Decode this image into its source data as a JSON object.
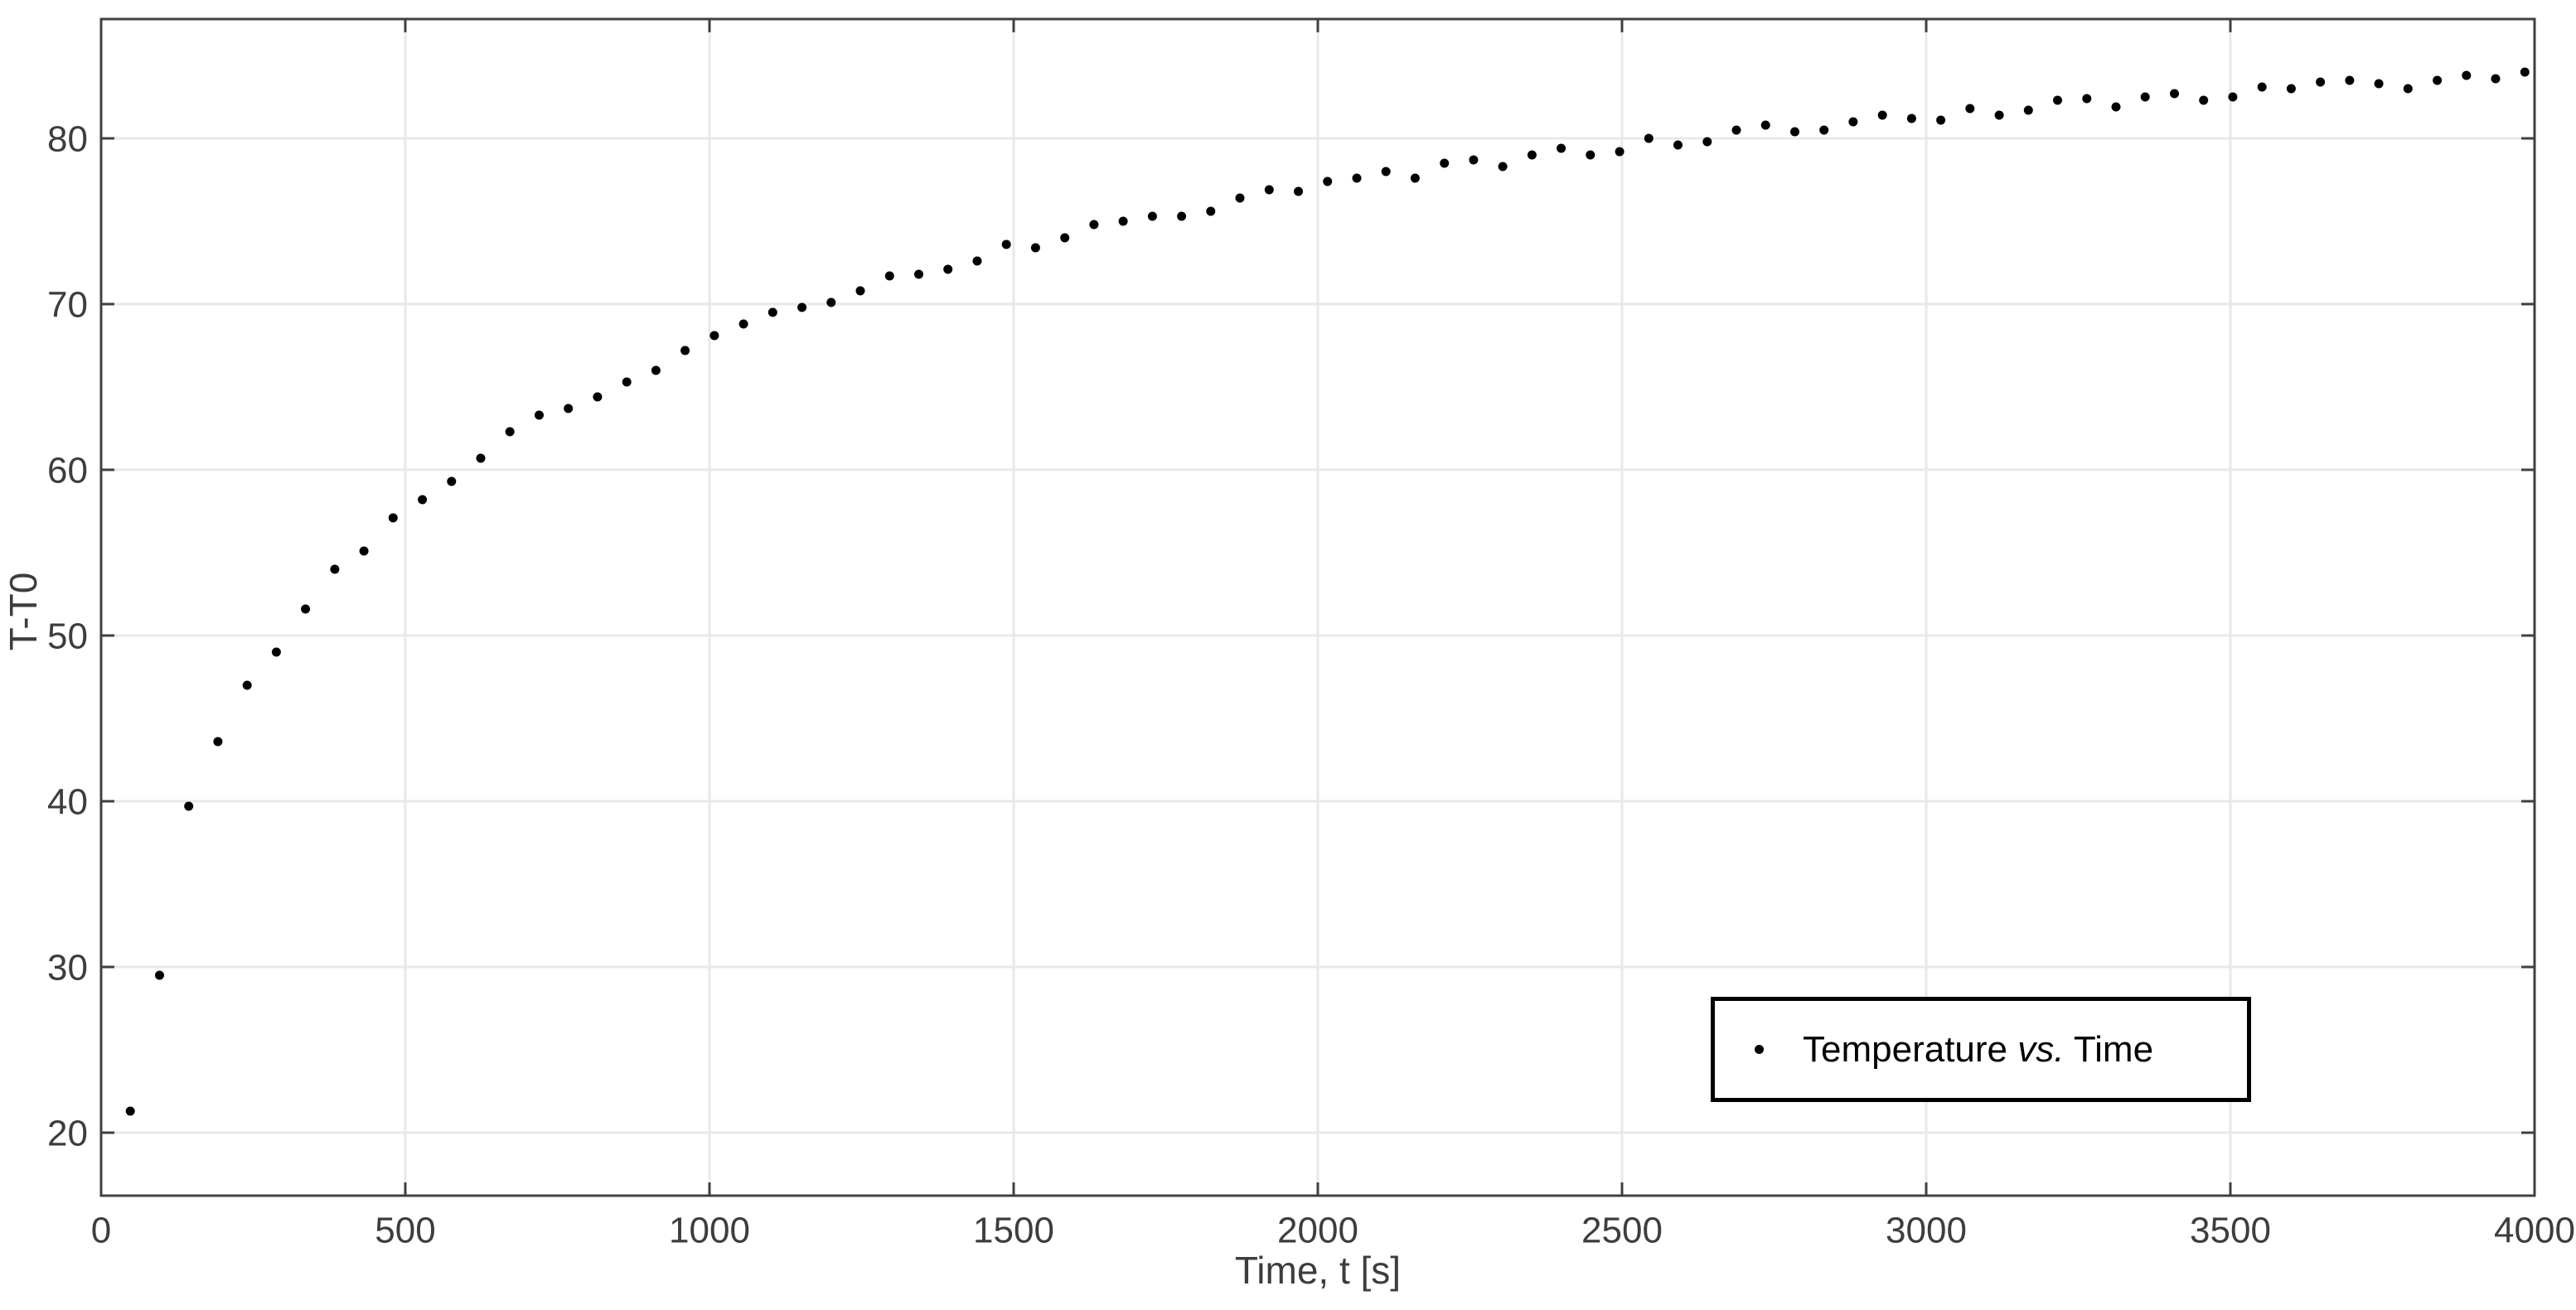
{
  "figure": {
    "xlabel": "Time, t [s]",
    "ylabel": "T-T0"
  },
  "legend": {
    "prefix": "Temperature ",
    "italic": "vs.",
    "suffix": " Time"
  },
  "chart_data": {
    "type": "scatter",
    "title": "",
    "xlabel": "Time, t [s]",
    "ylabel": "T-T0",
    "series_name": "Temperature vs. Time",
    "xlim": [
      0,
      4000
    ],
    "ylim": [
      16.2,
      87.2
    ],
    "xticks": [
      0,
      500,
      1000,
      1500,
      2000,
      2500,
      3000,
      3500,
      4000
    ],
    "yticks": [
      20,
      30,
      40,
      50,
      60,
      70,
      80
    ],
    "grid": true,
    "legend_position": "lower right",
    "marker": "dot",
    "colors": {
      "marker": "#000000",
      "axis": "#404040",
      "grid": "#e8e8e8",
      "tick_label": "#3d3d3d",
      "legend_border": "#000000",
      "background": "#ffffff"
    },
    "points": [
      [
        48,
        21.3
      ],
      [
        96,
        29.5
      ],
      [
        144,
        39.7
      ],
      [
        192,
        43.6
      ],
      [
        240,
        47.0
      ],
      [
        288,
        49.0
      ],
      [
        336,
        51.6
      ],
      [
        384,
        54.0
      ],
      [
        432,
        55.1
      ],
      [
        480,
        57.1
      ],
      [
        528,
        58.2
      ],
      [
        576,
        59.3
      ],
      [
        624,
        60.7
      ],
      [
        672,
        62.3
      ],
      [
        720,
        63.3
      ],
      [
        768,
        63.7
      ],
      [
        816,
        64.4
      ],
      [
        864,
        65.3
      ],
      [
        912,
        66.0
      ],
      [
        960,
        67.2
      ],
      [
        1008,
        68.1
      ],
      [
        1056,
        68.8
      ],
      [
        1104,
        69.5
      ],
      [
        1152,
        69.8
      ],
      [
        1200,
        70.1
      ],
      [
        1248,
        70.8
      ],
      [
        1296,
        71.7
      ],
      [
        1344,
        71.8
      ],
      [
        1392,
        72.1
      ],
      [
        1440,
        72.6
      ],
      [
        1488,
        73.6
      ],
      [
        1536,
        73.4
      ],
      [
        1584,
        74.0
      ],
      [
        1632,
        74.8
      ],
      [
        1680,
        75.0
      ],
      [
        1728,
        75.3
      ],
      [
        1776,
        75.3
      ],
      [
        1824,
        75.6
      ],
      [
        1872,
        76.4
      ],
      [
        1920,
        76.9
      ],
      [
        1968,
        76.8
      ],
      [
        2016,
        77.4
      ],
      [
        2064,
        77.6
      ],
      [
        2112,
        78.0
      ],
      [
        2160,
        77.6
      ],
      [
        2208,
        78.5
      ],
      [
        2256,
        78.7
      ],
      [
        2304,
        78.3
      ],
      [
        2352,
        79.0
      ],
      [
        2400,
        79.4
      ],
      [
        2448,
        79.0
      ],
      [
        2496,
        79.2
      ],
      [
        2544,
        80.0
      ],
      [
        2592,
        79.6
      ],
      [
        2640,
        79.8
      ],
      [
        2688,
        80.5
      ],
      [
        2736,
        80.8
      ],
      [
        2784,
        80.4
      ],
      [
        2832,
        80.5
      ],
      [
        2880,
        81.0
      ],
      [
        2928,
        81.4
      ],
      [
        2976,
        81.2
      ],
      [
        3024,
        81.1
      ],
      [
        3072,
        81.8
      ],
      [
        3120,
        81.4
      ],
      [
        3168,
        81.7
      ],
      [
        3216,
        82.3
      ],
      [
        3264,
        82.4
      ],
      [
        3312,
        81.9
      ],
      [
        3360,
        82.5
      ],
      [
        3408,
        82.7
      ],
      [
        3456,
        82.3
      ],
      [
        3504,
        82.5
      ],
      [
        3552,
        83.1
      ],
      [
        3600,
        83.0
      ],
      [
        3648,
        83.4
      ],
      [
        3696,
        83.5
      ],
      [
        3744,
        83.3
      ],
      [
        3792,
        83.0
      ],
      [
        3840,
        83.5
      ],
      [
        3888,
        83.8
      ],
      [
        3936,
        83.6
      ],
      [
        3984,
        84.0
      ]
    ]
  }
}
